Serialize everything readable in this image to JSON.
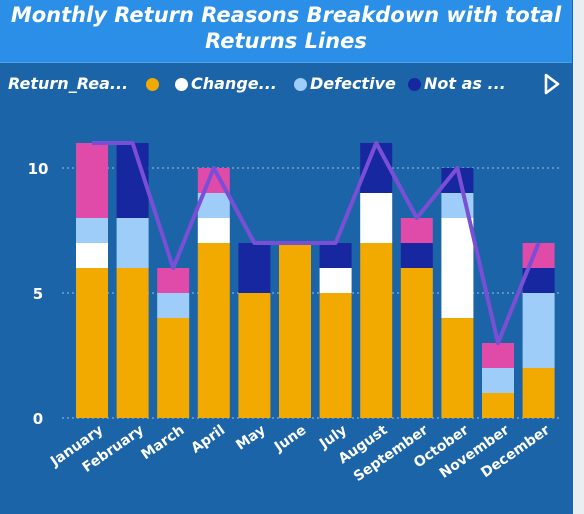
{
  "chart_data": {
    "type": "bar",
    "stacked": true,
    "title_line1": "Monthly Return Reasons Breakdown with total",
    "title_line2": "Returns Lines",
    "legend_title": "Return_Rea...",
    "categories": [
      "January",
      "February",
      "March",
      "April",
      "May",
      "June",
      "July",
      "August",
      "September",
      "October",
      "November",
      "December"
    ],
    "series": [
      {
        "name": "Change...",
        "color": "#f2a900",
        "values": [
          6,
          6,
          4,
          7,
          5,
          7,
          5,
          7,
          6,
          4,
          1,
          2
        ]
      },
      {
        "name": "",
        "color": "#ffffff",
        "values": [
          1,
          0,
          0,
          1,
          0,
          0,
          1,
          2,
          0,
          4,
          0,
          0
        ]
      },
      {
        "name": "Defective",
        "color": "#9ecdfa",
        "values": [
          1,
          2,
          1,
          1,
          0,
          0,
          0,
          0,
          0,
          1,
          1,
          3
        ]
      },
      {
        "name": "Not as ...",
        "color": "#1727a0",
        "values": [
          0,
          3,
          0,
          0,
          2,
          0,
          1,
          2,
          1,
          1,
          0,
          1
        ]
      },
      {
        "name": "",
        "color": "#e04aa8",
        "values": [
          3,
          0,
          1,
          1,
          0,
          0,
          0,
          0,
          1,
          0,
          1,
          1
        ]
      }
    ],
    "line": {
      "color": "#7a4fd6",
      "values": [
        11,
        11,
        6,
        10,
        7,
        7,
        7,
        11,
        8,
        10,
        3,
        7
      ]
    },
    "ylim": [
      0,
      11.6
    ],
    "yticks": [
      0,
      5,
      10
    ],
    "grid": true,
    "legend_position": "top"
  }
}
